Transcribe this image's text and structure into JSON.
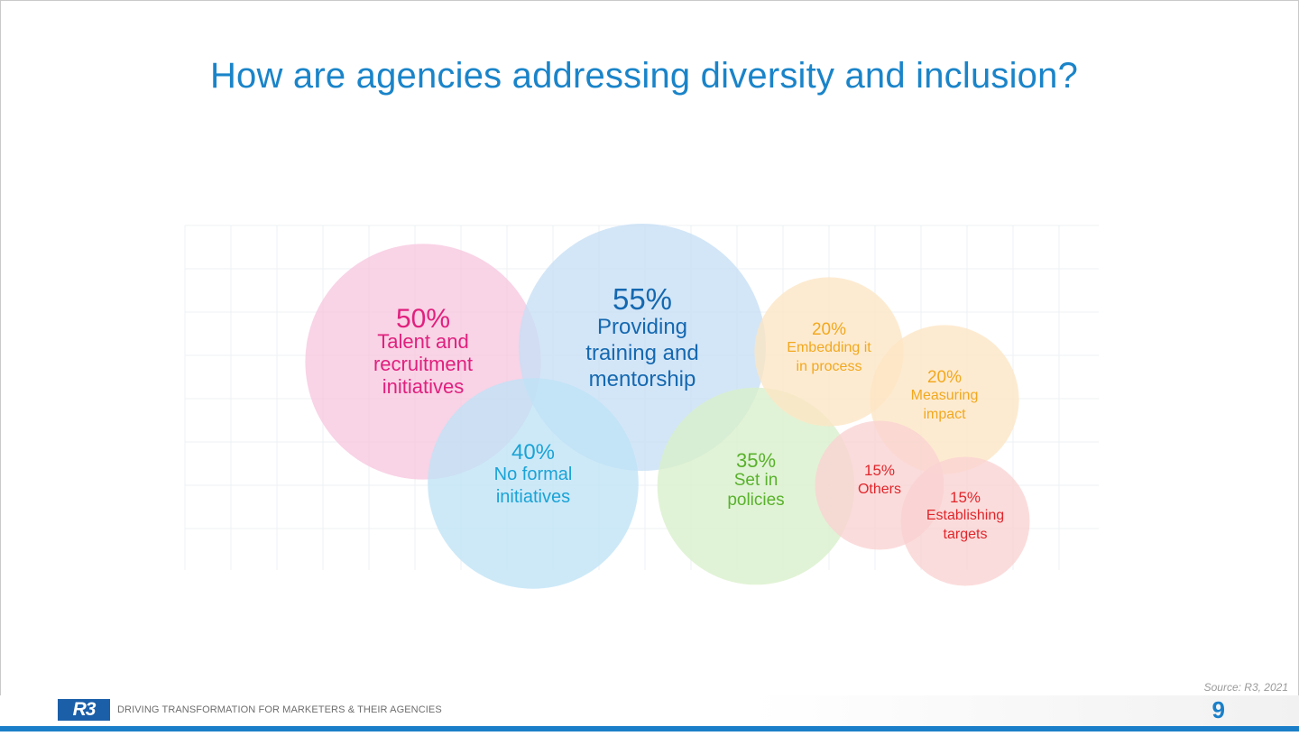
{
  "slide": {
    "title": "How are agencies addressing diversity and inclusion?",
    "source": "Source: R3, 2021",
    "logo_text": "R3",
    "tagline": "DRIVING TRANSFORMATION FOR MARKETERS & THEIR AGENCIES",
    "page_number": "9"
  },
  "chart_data": {
    "type": "bubble",
    "title": "How are agencies addressing diversity and inclusion?",
    "unit": "%",
    "bubbles": [
      {
        "value": 50,
        "label_pct": "50%",
        "label_lines": [
          "Talent and",
          "recruitment",
          "initiatives"
        ],
        "fill": "#f7c6df",
        "text_color": "#e0207e"
      },
      {
        "value": 55,
        "label_pct": "55%",
        "label_lines": [
          "Providing",
          "training and",
          "mentorship"
        ],
        "fill": "#c7dff5",
        "text_color": "#1568b0"
      },
      {
        "value": 40,
        "label_pct": "40%",
        "label_lines": [
          "No formal",
          "initiatives"
        ],
        "fill": "#bfe3f6",
        "text_color": "#1aa3d6"
      },
      {
        "value": 35,
        "label_pct": "35%",
        "label_lines": [
          "Set in",
          "policies"
        ],
        "fill": "#d9efcb",
        "text_color": "#58b12c"
      },
      {
        "value": 20,
        "label_pct": "20%",
        "label_lines": [
          "Embedding it",
          "in process"
        ],
        "fill": "#fde6c4",
        "text_color": "#f2a81e"
      },
      {
        "value": 20,
        "label_pct": "20%",
        "label_lines": [
          "Measuring",
          "impact"
        ],
        "fill": "#fde6c4",
        "text_color": "#f2a81e"
      },
      {
        "value": 15,
        "label_pct": "15%",
        "label_lines": [
          "Others"
        ],
        "fill": "#fad2d2",
        "text_color": "#e0262b"
      },
      {
        "value": 15,
        "label_pct": "15%",
        "label_lines": [
          "Establishing",
          "targets"
        ],
        "fill": "#fad2d2",
        "text_color": "#e0262b"
      }
    ]
  }
}
